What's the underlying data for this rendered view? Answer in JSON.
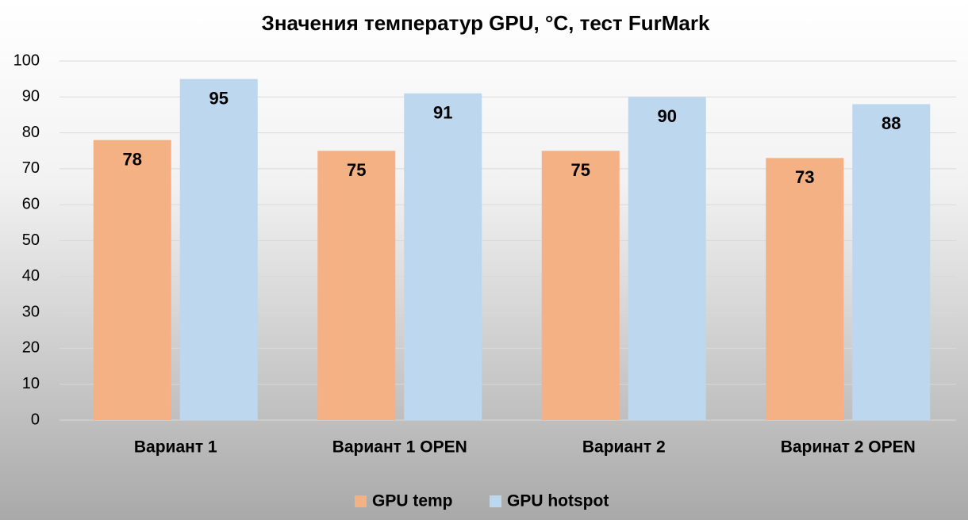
{
  "chart_data": {
    "type": "bar",
    "title": "Значения температур GPU, °C, тест FurMark",
    "categories": [
      "Вариант 1",
      "Вариант 1 OPEN",
      "Вариант 2",
      "Варинат 2 OPEN"
    ],
    "series": [
      {
        "name": "GPU temp",
        "color": "#f4b183",
        "values": [
          78,
          75,
          75,
          73
        ]
      },
      {
        "name": "GPU hotspot",
        "color": "#bdd7ee",
        "values": [
          95,
          91,
          90,
          88
        ]
      }
    ],
    "ylim": [
      0,
      100
    ],
    "yticks": [
      0,
      10,
      20,
      30,
      40,
      50,
      60,
      70,
      80,
      90,
      100
    ],
    "grid": true
  }
}
